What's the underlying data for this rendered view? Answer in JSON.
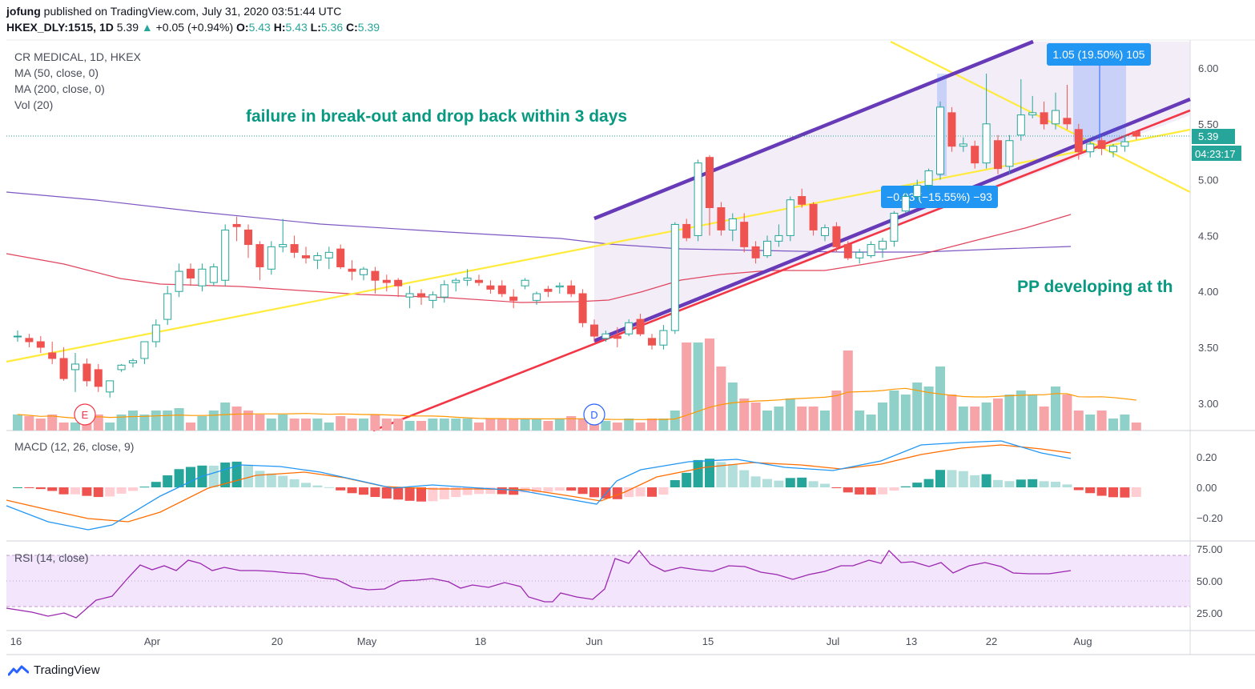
{
  "header": {
    "author": "jofung",
    "published": "published on TradingView.com, July 31, 2020 03:51:44 UTC",
    "symbol": "HKEX_DLY:1515, 1D",
    "last": "5.39",
    "change": "+0.05 (+0.94%)",
    "o_label": "O:",
    "o": "5.43",
    "h_label": "H:",
    "h": "5.43",
    "l_label": "L:",
    "l": "5.36",
    "c_label": "C:",
    "c": "5.39"
  },
  "legend": {
    "title": "CR MEDICAL, 1D, HKEX",
    "ma50": "MA (50, close, 0)",
    "ma200": "MA (200, close, 0)",
    "vol": "Vol (20)",
    "macd": "MACD (12, 26, close, 9)",
    "rsi": "RSI (14, close)"
  },
  "annotations": {
    "main_note": "failure in break-out and drop back within 3 days",
    "side_note": "PP developing at th",
    "measure_down": "−0.93 (−15.55%) −93",
    "measure_up": "1.05 (19.50%) 105",
    "price_tag": "5.39",
    "countdown": "04:23:17",
    "event_e": "E",
    "event_d": "D"
  },
  "axes": {
    "price_ticks": [
      "6.00",
      "5.50",
      "5.00",
      "4.50",
      "4.00",
      "3.50",
      "3.00"
    ],
    "macd_ticks": [
      "0.20",
      "0.00",
      "−0.20"
    ],
    "rsi_ticks": [
      "75.00",
      "50.00",
      "25.00"
    ],
    "x_ticks": [
      "16",
      "Apr",
      "20",
      "May",
      "18",
      "Jun",
      "15",
      "Jul",
      "13",
      "22",
      "Aug"
    ]
  },
  "footer": {
    "brand": "TradingView"
  },
  "colors": {
    "up": "#26a69a",
    "down": "#ef5350",
    "channel": "#673ab7",
    "trend_yellow": "#ffeb3b",
    "trend_red": "#f23645",
    "text_teal": "#089981",
    "ma200": "#7e57c2",
    "ma50": "#e0455e",
    "macd": "#2196f3",
    "signal": "#ff6d00"
  },
  "chart_data": {
    "type": "candlestick",
    "period": "1D",
    "date_range": [
      "2020-03-16",
      "2020-07-31"
    ],
    "ohlc": [
      [
        3.6,
        3.65,
        3.55,
        3.6
      ],
      [
        3.58,
        3.62,
        3.5,
        3.55
      ],
      [
        3.55,
        3.6,
        3.45,
        3.5
      ],
      [
        3.45,
        3.55,
        3.35,
        3.4
      ],
      [
        3.4,
        3.5,
        3.2,
        3.22
      ],
      [
        3.3,
        3.45,
        3.1,
        3.35
      ],
      [
        3.35,
        3.4,
        3.15,
        3.2
      ],
      [
        3.3,
        3.35,
        3.1,
        3.15
      ],
      [
        3.1,
        3.2,
        3.05,
        3.2
      ],
      [
        3.3,
        3.35,
        3.28,
        3.34
      ],
      [
        3.36,
        3.4,
        3.32,
        3.38
      ],
      [
        3.4,
        3.55,
        3.35,
        3.55
      ],
      [
        3.55,
        3.75,
        3.5,
        3.7
      ],
      [
        3.75,
        4.05,
        3.7,
        3.98
      ],
      [
        4.0,
        4.25,
        3.95,
        4.18
      ],
      [
        4.2,
        4.25,
        4.05,
        4.12
      ],
      [
        4.05,
        4.25,
        4.0,
        4.2
      ],
      [
        4.08,
        4.25,
        4.05,
        4.22
      ],
      [
        4.1,
        4.6,
        4.05,
        4.55
      ],
      [
        4.6,
        4.67,
        4.45,
        4.58
      ],
      [
        4.55,
        4.6,
        4.3,
        4.42
      ],
      [
        4.42,
        4.45,
        4.1,
        4.22
      ],
      [
        4.2,
        4.45,
        4.15,
        4.4
      ],
      [
        4.4,
        4.65,
        4.35,
        4.42
      ],
      [
        4.42,
        4.5,
        4.3,
        4.35
      ],
      [
        4.32,
        4.4,
        4.25,
        4.3
      ],
      [
        4.28,
        4.35,
        4.2,
        4.32
      ],
      [
        4.3,
        4.4,
        4.2,
        4.35
      ],
      [
        4.38,
        4.42,
        4.2,
        4.22
      ],
      [
        4.2,
        4.28,
        4.1,
        4.18
      ],
      [
        4.15,
        4.22,
        4.1,
        4.2
      ],
      [
        4.18,
        4.22,
        3.98,
        4.1
      ],
      [
        4.1,
        4.15,
        4.0,
        4.08
      ],
      [
        4.1,
        4.12,
        3.95,
        4.05
      ],
      [
        3.95,
        4.05,
        3.85,
        3.98
      ],
      [
        3.98,
        4.02,
        3.88,
        3.95
      ],
      [
        3.92,
        4.0,
        3.85,
        3.97
      ],
      [
        3.95,
        4.1,
        3.9,
        4.06
      ],
      [
        4.08,
        4.12,
        4.0,
        4.1
      ],
      [
        4.1,
        4.2,
        4.05,
        4.12
      ],
      [
        4.1,
        4.15,
        4.05,
        4.08
      ],
      [
        4.05,
        4.1,
        3.98,
        4.02
      ],
      [
        4.05,
        4.1,
        3.95,
        3.98
      ],
      [
        3.95,
        4.02,
        3.85,
        3.92
      ],
      [
        4.05,
        4.12,
        4.02,
        4.1
      ],
      [
        3.92,
        4.0,
        3.88,
        3.98
      ],
      [
        4.02,
        4.05,
        3.95,
        4.0
      ],
      [
        4.04,
        4.08,
        3.98,
        4.05
      ],
      [
        4.05,
        4.1,
        3.95,
        3.98
      ],
      [
        3.98,
        4.02,
        3.68,
        3.72
      ],
      [
        3.7,
        3.75,
        3.55,
        3.6
      ],
      [
        3.58,
        3.65,
        3.55,
        3.62
      ],
      [
        3.6,
        3.68,
        3.5,
        3.58
      ],
      [
        3.62,
        3.75,
        3.6,
        3.72
      ],
      [
        3.75,
        3.8,
        3.6,
        3.62
      ],
      [
        3.58,
        3.62,
        3.48,
        3.52
      ],
      [
        3.52,
        3.7,
        3.48,
        3.65
      ],
      [
        3.65,
        4.62,
        3.62,
        4.6
      ],
      [
        4.6,
        4.65,
        4.45,
        4.48
      ],
      [
        4.5,
        5.18,
        4.45,
        5.15
      ],
      [
        5.2,
        5.22,
        4.5,
        4.75
      ],
      [
        4.75,
        4.8,
        4.5,
        4.55
      ],
      [
        4.55,
        4.7,
        4.45,
        4.65
      ],
      [
        4.62,
        4.7,
        4.35,
        4.4
      ],
      [
        4.4,
        4.45,
        4.25,
        4.3
      ],
      [
        4.32,
        4.5,
        4.3,
        4.45
      ],
      [
        4.45,
        4.6,
        4.4,
        4.5
      ],
      [
        4.5,
        4.85,
        4.45,
        4.82
      ],
      [
        4.85,
        4.92,
        4.75,
        4.78
      ],
      [
        4.78,
        4.8,
        4.5,
        4.55
      ],
      [
        4.5,
        4.6,
        4.45,
        4.57
      ],
      [
        4.58,
        4.62,
        4.35,
        4.4
      ],
      [
        4.42,
        4.45,
        4.28,
        4.3
      ],
      [
        4.3,
        4.38,
        4.25,
        4.35
      ],
      [
        4.32,
        4.45,
        4.3,
        4.42
      ],
      [
        4.38,
        4.48,
        4.3,
        4.45
      ],
      [
        4.45,
        4.72,
        4.4,
        4.7
      ],
      [
        4.72,
        4.9,
        4.7,
        4.85
      ],
      [
        4.85,
        5.0,
        4.8,
        4.95
      ],
      [
        4.95,
        5.1,
        4.9,
        5.08
      ],
      [
        5.05,
        5.7,
        5.0,
        5.65
      ],
      [
        5.6,
        5.65,
        5.25,
        5.3
      ],
      [
        5.3,
        5.38,
        5.25,
        5.32
      ],
      [
        5.3,
        5.35,
        5.1,
        5.15
      ],
      [
        5.15,
        5.95,
        5.1,
        5.5
      ],
      [
        5.35,
        5.4,
        5.05,
        5.1
      ],
      [
        5.12,
        5.4,
        5.05,
        5.35
      ],
      [
        5.4,
        5.9,
        5.35,
        5.58
      ],
      [
        5.58,
        5.75,
        5.55,
        5.6
      ],
      [
        5.6,
        5.7,
        5.45,
        5.5
      ],
      [
        5.5,
        5.78,
        5.45,
        5.62
      ],
      [
        5.55,
        5.85,
        5.45,
        5.5
      ],
      [
        5.45,
        5.5,
        5.18,
        5.25
      ],
      [
        5.25,
        5.35,
        5.2,
        5.32
      ],
      [
        5.35,
        5.38,
        5.22,
        5.28
      ],
      [
        5.25,
        5.32,
        5.2,
        5.3
      ],
      [
        5.3,
        5.4,
        5.25,
        5.34
      ],
      [
        5.43,
        5.43,
        5.36,
        5.39
      ]
    ],
    "volume": [
      20,
      18,
      15,
      20,
      10,
      10,
      25,
      20,
      10,
      20,
      25,
      20,
      25,
      25,
      28,
      10,
      18,
      25,
      35,
      30,
      25,
      20,
      15,
      20,
      15,
      15,
      15,
      10,
      18,
      15,
      15,
      20,
      15,
      15,
      12,
      12,
      15,
      15,
      15,
      15,
      10,
      15,
      15,
      15,
      15,
      15,
      12,
      15,
      18,
      15,
      10,
      12,
      10,
      15,
      10,
      15,
      15,
      25,
      110,
      110,
      115,
      80,
      60,
      40,
      35,
      25,
      30,
      40,
      30,
      30,
      25,
      50,
      100,
      25,
      20,
      35,
      50,
      45,
      60,
      55,
      80,
      45,
      30,
      30,
      35,
      40,
      45,
      50,
      45,
      30,
      55,
      45,
      25,
      20,
      25,
      15,
      20,
      10
    ],
    "ylim": [
      2.8,
      6.25
    ]
  }
}
